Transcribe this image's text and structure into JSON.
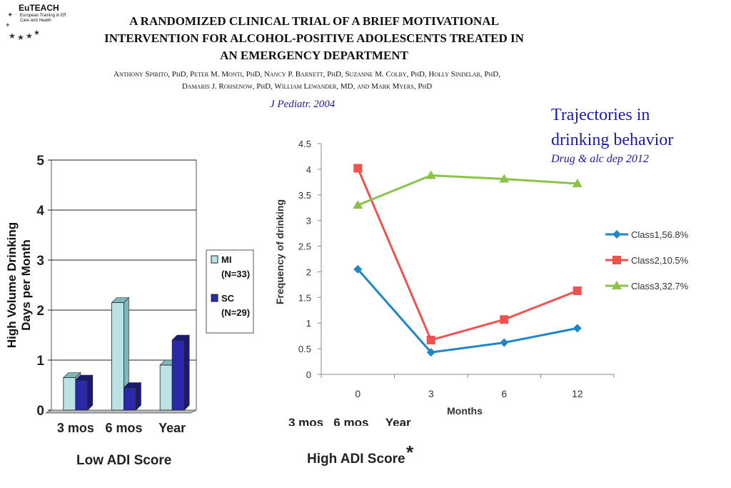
{
  "logo": {
    "name": "EuTEACH",
    "subtitle": "European Training in Eff Care and Health"
  },
  "paper": {
    "title_lines": [
      "A RANDOMIZED CLINICAL TRIAL OF A BRIEF MOTIVATIONAL",
      "INTERVENTION FOR ALCOHOL-POSITIVE ADOLESCENTS TREATED IN",
      "AN EMERGENCY DEPARTMENT"
    ],
    "authors_lines": [
      "Anthony Spirito, PhD, Peter M. Monti, PhD, Nancy P. Barnett, PhD, Suzanne M. Colby, PhD, Holly Sindelar, PhD,",
      "Damaris J. Rohsenow, PhD, William Lewander, MD, and Mark Myers, PhD"
    ],
    "journal": "J Pediatr. 2004"
  },
  "trajectories": {
    "title_line1": "Trajectories in",
    "title_line2": "drinking behavior",
    "citation": "Drug & alc dep 2012"
  },
  "labels": {
    "low_adi": "Low ADI Score",
    "high_adi": "High ADI Score",
    "asterisk": "*",
    "partial_axis": "3 mos   6 mos     Year"
  },
  "chart_data": [
    {
      "type": "bar",
      "title": "",
      "xlabel": "",
      "ylabel": "High Volume Drinking Days per Month",
      "ylim": [
        0,
        5
      ],
      "yticks": [
        "0",
        "1",
        "2",
        "3",
        "4",
        "5"
      ],
      "categories": [
        "3 mos",
        "6 mos",
        "Year"
      ],
      "series": [
        {
          "name": "MI",
          "sample": "(N=33)",
          "color": "#b9e3e4",
          "values": [
            0.65,
            2.15,
            0.9
          ]
        },
        {
          "name": "SC",
          "sample": "(N=29)",
          "color": "#2a2aa8",
          "values": [
            0.6,
            0.45,
            1.4
          ]
        }
      ],
      "footer": "Low ADI Score",
      "grid": true
    },
    {
      "type": "line",
      "title": "",
      "xlabel": "Months",
      "ylabel": "Frequency of drinking",
      "ylim": [
        0,
        4.5
      ],
      "yticks": [
        "0",
        "0.5",
        "1",
        "1.5",
        "2",
        "2.5",
        "3",
        "3.5",
        "4",
        "4.5"
      ],
      "x": [
        "0",
        "3",
        "6",
        "12"
      ],
      "series": [
        {
          "name": "Class1,56.8%",
          "color": "#1f86c9",
          "marker": "diamond",
          "values": [
            2.05,
            0.43,
            0.62,
            0.9
          ]
        },
        {
          "name": "Class2,10.5%",
          "color": "#ef5350",
          "marker": "square",
          "values": [
            4.02,
            0.67,
            1.07,
            1.63
          ]
        },
        {
          "name": "Class3,32.7%",
          "color": "#8bc34a",
          "marker": "triangle",
          "values": [
            3.3,
            3.88,
            3.81,
            3.72
          ]
        }
      ],
      "legend": "right",
      "grid": false
    }
  ]
}
